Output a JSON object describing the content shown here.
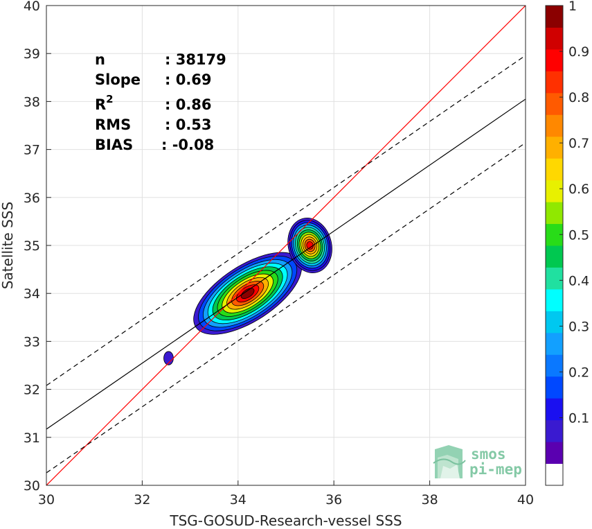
{
  "chart_data": {
    "type": "scatter",
    "subtype": "density-contour",
    "xlabel": "TSG-GOSUD-Research-vessel SSS",
    "ylabel": "Satellite SSS",
    "xlim": [
      30,
      40
    ],
    "ylim": [
      30,
      40
    ],
    "x_ticks": [
      "30",
      "32",
      "34",
      "36",
      "38",
      "40"
    ],
    "y_ticks": [
      "30",
      "31",
      "32",
      "33",
      "34",
      "35",
      "36",
      "37",
      "38",
      "39",
      "40"
    ],
    "grid": true,
    "stats": [
      {
        "label": "n",
        "value": ": 38179"
      },
      {
        "label": "Slope",
        "value": ": 0.69"
      },
      {
        "label": "R",
        "sup": "2",
        "value": ": 0.86"
      },
      {
        "label": "RMS",
        "value": ": 0.53"
      },
      {
        "label": "BIAS",
        "value": ": -0.08"
      }
    ],
    "lines": [
      {
        "name": "identity",
        "color": "#ff0000",
        "style": "solid",
        "points": [
          [
            30,
            30
          ],
          [
            40,
            40
          ]
        ]
      },
      {
        "name": "regression",
        "color": "#000000",
        "style": "solid",
        "points": [
          [
            30,
            31.17
          ],
          [
            40,
            38.05
          ]
        ]
      },
      {
        "name": "upper-bound",
        "color": "#000000",
        "style": "dashed",
        "points": [
          [
            30,
            32.08
          ],
          [
            40,
            38.96
          ]
        ]
      },
      {
        "name": "lower-bound",
        "color": "#000000",
        "style": "dashed",
        "points": [
          [
            30,
            30.26
          ],
          [
            40,
            37.14
          ]
        ]
      }
    ],
    "density_peaks": [
      {
        "x": 34.2,
        "y": 34.0,
        "value": 1.0
      },
      {
        "x": 35.5,
        "y": 35.0,
        "value": 0.9
      },
      {
        "x": 32.55,
        "y": 32.65,
        "value": 0.05
      }
    ],
    "colorbar": {
      "min": 0,
      "max": 1,
      "ticks": [
        "0.1",
        "0.2",
        "0.3",
        "0.4",
        "0.5",
        "0.6",
        "0.7",
        "0.8",
        "0.9",
        "1"
      ],
      "colors": [
        "#ffffff",
        "#5a00b0",
        "#3a1ad0",
        "#1a10f0",
        "#0048ff",
        "#0a78ff",
        "#12a0ff",
        "#00c8f0",
        "#00ffff",
        "#20e0a0",
        "#00c850",
        "#28dc18",
        "#90e800",
        "#e8f000",
        "#ffd800",
        "#ffb000",
        "#ff8800",
        "#ff5a00",
        "#ff3000",
        "#ff0000",
        "#d00000",
        "#8b0000"
      ]
    },
    "logo": {
      "line1": "smos",
      "line2": "pi-mep"
    }
  }
}
